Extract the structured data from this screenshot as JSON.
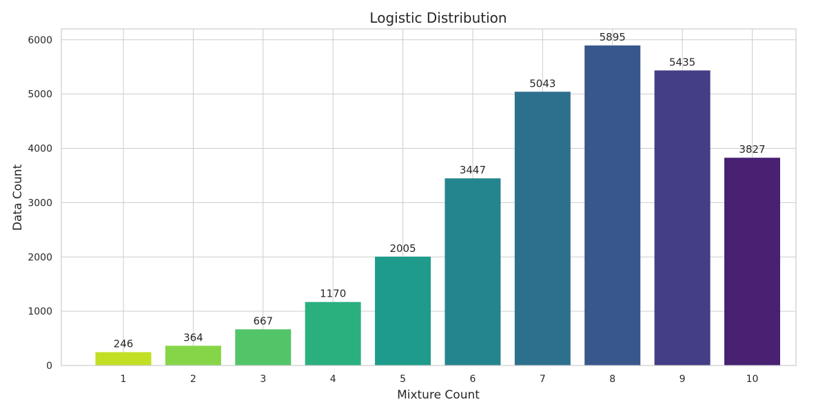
{
  "chart_data": {
    "type": "bar",
    "title": "Logistic Distribution",
    "xlabel": "Mixture Count",
    "ylabel": "Data Count",
    "categories": [
      "1",
      "2",
      "3",
      "4",
      "5",
      "6",
      "7",
      "8",
      "9",
      "10"
    ],
    "values": [
      246,
      364,
      667,
      1170,
      2005,
      3447,
      5043,
      5895,
      5435,
      3827
    ],
    "data_labels": [
      "246",
      "364",
      "667",
      "1170",
      "2005",
      "3447",
      "5043",
      "5895",
      "5435",
      "3827"
    ],
    "yticks": [
      0,
      1000,
      2000,
      3000,
      4000,
      5000,
      6000
    ],
    "ytick_labels": [
      "0",
      "1000",
      "2000",
      "3000",
      "4000",
      "5000",
      "6000"
    ],
    "ylim": [
      0,
      6200
    ],
    "grid": true,
    "colors": [
      "#c2df23",
      "#86d549",
      "#52c569",
      "#2ab07f",
      "#1e9b8a",
      "#25858e",
      "#2d708e",
      "#38588c",
      "#433e85",
      "#482173"
    ],
    "colormap": "viridis (reversed)"
  }
}
